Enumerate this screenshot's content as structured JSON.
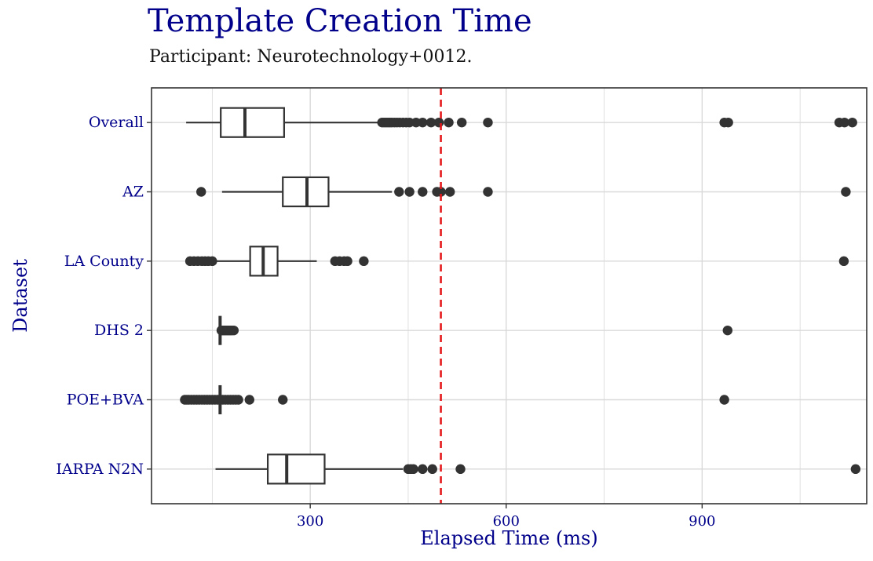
{
  "chart_data": {
    "type": "boxplot",
    "orientation": "horizontal",
    "title": "Template Creation Time",
    "subtitle": "Participant: Neurotechnology+0012.",
    "xlabel": "Elapsed Time (ms)",
    "ylabel": "Dataset",
    "xlim": [
      57,
      1152
    ],
    "xticks": [
      300,
      600,
      900
    ],
    "grid": true,
    "reference_line": {
      "x": 500,
      "style": "dashed",
      "color": "#e41a1c"
    },
    "colors": {
      "box_stroke": "#333333",
      "box_fill": "#ffffff",
      "outlier": "#333333",
      "grid": "#d9d9d9",
      "label": "#00008b"
    },
    "series": [
      {
        "name": "Overall",
        "whisker_low": 110,
        "q1": 163,
        "median": 200,
        "q3": 260,
        "whisker_high": 405,
        "outliers": [
          410,
          413,
          416,
          419,
          422,
          425,
          429,
          433,
          437,
          442,
          447,
          452,
          462,
          472,
          485,
          497,
          512,
          532,
          572,
          934,
          940,
          1110,
          1118,
          1130
        ]
      },
      {
        "name": "AZ",
        "whisker_low": 165,
        "q1": 258,
        "median": 295,
        "q3": 328,
        "whisker_high": 425,
        "outliers": [
          133,
          436,
          452,
          472,
          494,
          500,
          514,
          572,
          1120
        ]
      },
      {
        "name": "LA County",
        "whisker_low": 154,
        "q1": 208,
        "median": 228,
        "q3": 250,
        "whisker_high": 310,
        "outliers": [
          116,
          122,
          128,
          134,
          139,
          144,
          150,
          338,
          345,
          352,
          357,
          382,
          1117
        ]
      },
      {
        "name": "DHS 2",
        "whisker_low": 162,
        "q1": 162,
        "median": 162,
        "q3": 162,
        "whisker_high": 162,
        "outliers": [
          164,
          166,
          168,
          170,
          172,
          174,
          176,
          178,
          180,
          183,
          939
        ]
      },
      {
        "name": "POE+BVA",
        "whisker_low": 162,
        "q1": 162,
        "median": 162,
        "q3": 162,
        "whisker_high": 162,
        "outliers": [
          108,
          111,
          114,
          118,
          122,
          126,
          130,
          134,
          138,
          142,
          146,
          150,
          154,
          158,
          166,
          170,
          174,
          178,
          182,
          186,
          190,
          207,
          258,
          934
        ]
      },
      {
        "name": "IARPA N2N",
        "whisker_low": 155,
        "q1": 235,
        "median": 264,
        "q3": 322,
        "whisker_high": 442,
        "outliers": [
          450,
          454,
          458,
          472,
          487,
          530,
          1135
        ]
      }
    ]
  }
}
